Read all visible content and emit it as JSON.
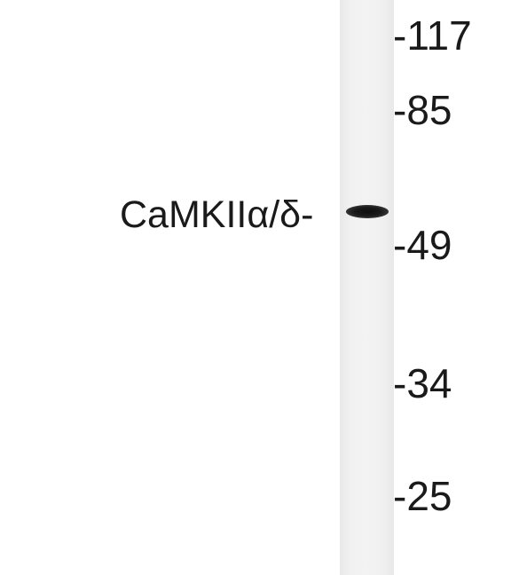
{
  "blot": {
    "protein_label": "CaMKIIα/δ-",
    "markers": [
      {
        "label": "-117",
        "kda": 117
      },
      {
        "label": "-85",
        "kda": 85
      },
      {
        "label": "-49",
        "kda": 49
      },
      {
        "label": "-34",
        "kda": 34
      },
      {
        "label": "-25",
        "kda": 25
      }
    ]
  }
}
